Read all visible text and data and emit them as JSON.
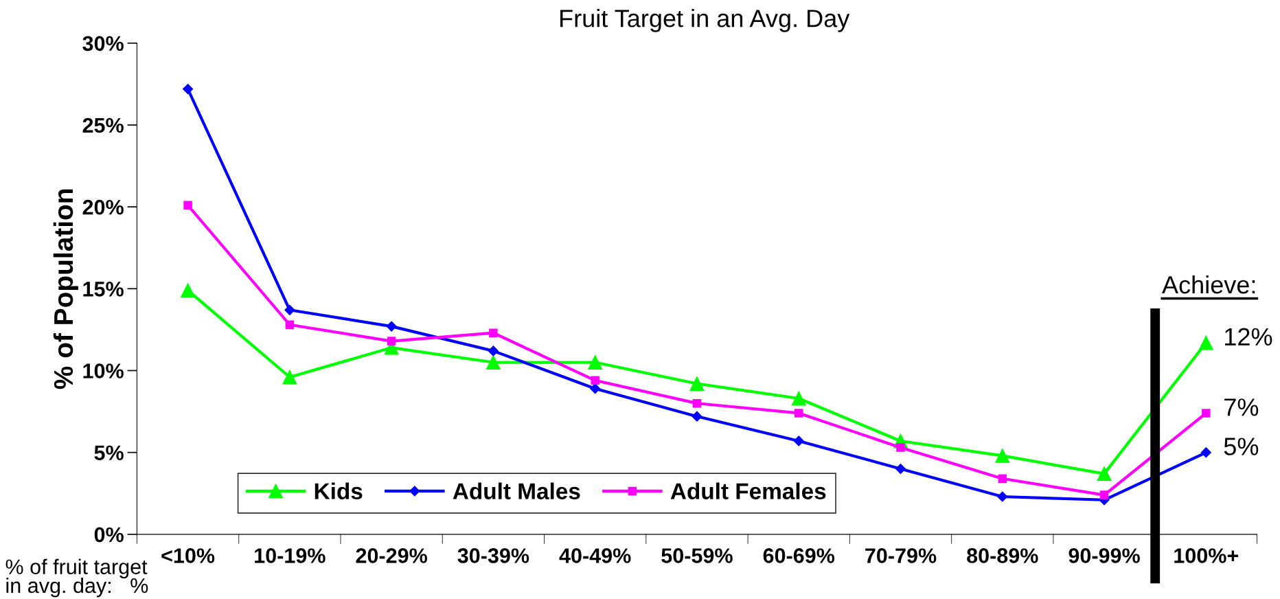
{
  "chart_data": {
    "type": "line",
    "title": "Fruit Target in an Avg. Day",
    "xlabel": "% of fruit target\nin avg. day:   %",
    "ylabel": "% of Population",
    "categories": [
      "<10%",
      "10-19%",
      "20-29%",
      "30-39%",
      "40-49%",
      "50-59%",
      "60-69%",
      "70-79%",
      "80-89%",
      "90-99%",
      "100%+"
    ],
    "series": [
      {
        "name": "Kids",
        "color": "#00ff00",
        "marker": "triangle",
        "values": [
          14.9,
          9.6,
          11.4,
          10.5,
          10.5,
          9.2,
          8.3,
          5.7,
          4.8,
          3.7,
          11.7
        ],
        "value_labels": [
          null,
          null,
          null,
          null,
          null,
          null,
          null,
          null,
          null,
          null,
          "12%"
        ]
      },
      {
        "name": "Adult Males",
        "color": "#0000ff",
        "marker": "diamond",
        "values": [
          27.2,
          13.7,
          12.7,
          11.2,
          8.9,
          7.2,
          5.7,
          4.0,
          2.3,
          2.1,
          5.0
        ],
        "value_labels": [
          null,
          null,
          null,
          null,
          null,
          null,
          null,
          null,
          null,
          null,
          "5%"
        ]
      },
      {
        "name": "Adult Females",
        "color": "#ff00ff",
        "marker": "square",
        "values": [
          20.1,
          12.8,
          11.8,
          12.3,
          9.4,
          8.0,
          7.4,
          5.3,
          3.4,
          2.4,
          7.4
        ],
        "value_labels": [
          null,
          null,
          null,
          null,
          null,
          null,
          null,
          null,
          null,
          null,
          "7%"
        ]
      }
    ],
    "ylim": [
      0,
      30
    ],
    "yticks": [
      {
        "value": 0,
        "label": "0%"
      },
      {
        "value": 5,
        "label": "5%"
      },
      {
        "value": 10,
        "label": "10%"
      },
      {
        "value": 15,
        "label": "15%"
      },
      {
        "value": 20,
        "label": "20%"
      },
      {
        "value": 25,
        "label": "25%"
      },
      {
        "value": 30,
        "label": "30%"
      }
    ],
    "annotations": [
      "Achieve:"
    ],
    "grid": false,
    "legend": "bottom left",
    "line_style": "solid"
  }
}
